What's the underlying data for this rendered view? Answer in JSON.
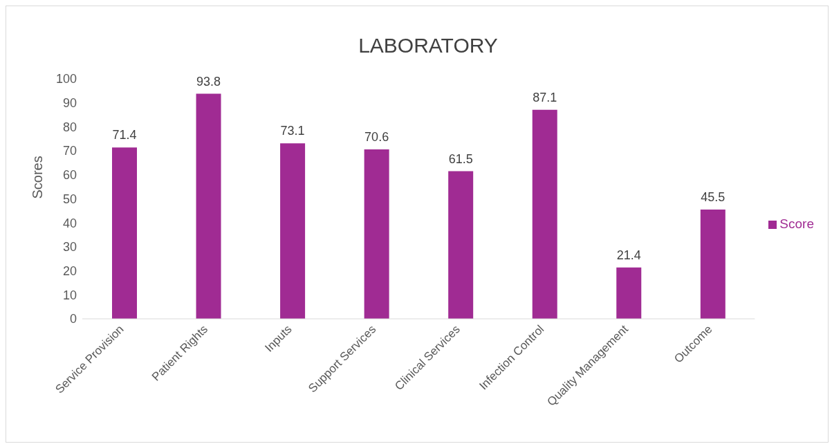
{
  "chart_data": {
    "type": "bar",
    "title": "LABORATORY",
    "ylabel": "Scores",
    "categories": [
      "Service Provision",
      "Patient Rights",
      "Inputs",
      "Support Services",
      "Clinical Services",
      "Infection Control",
      "Quality Management",
      "Outcome"
    ],
    "series": [
      {
        "name": "Score",
        "color": "#a02b93",
        "values": [
          71.4,
          93.8,
          73.1,
          70.6,
          61.5,
          87.1,
          21.4,
          45.5
        ]
      }
    ],
    "ylim": [
      0,
      100
    ],
    "yticks": [
      0,
      10,
      20,
      30,
      40,
      50,
      60,
      70,
      80,
      90,
      100
    ],
    "data_labels": true,
    "grid": false,
    "legend": "right"
  }
}
